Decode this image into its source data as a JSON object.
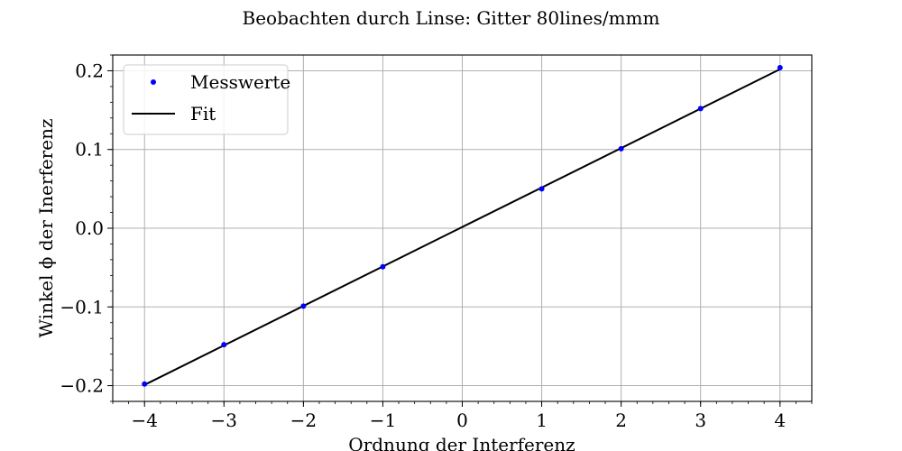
{
  "chart_data": {
    "type": "scatter",
    "title": "Beobachten durch Linse: Gitter 80lines/mmm",
    "xlabel": "Ordnung der Interferenz",
    "ylabel": "Winkel ϕ der Inerferenz",
    "xlim": [
      -4.4,
      4.4
    ],
    "ylim": [
      -0.22,
      0.22
    ],
    "xticks": [
      -4,
      -3,
      -2,
      -1,
      0,
      1,
      2,
      3,
      4
    ],
    "xtick_labels": [
      "−4",
      "−3",
      "−2",
      "−1",
      "0",
      "1",
      "2",
      "3",
      "4"
    ],
    "yticks": [
      -0.2,
      -0.1,
      0.0,
      0.1,
      0.2
    ],
    "ytick_labels": [
      "−0.2",
      "−0.1",
      "0.0",
      "0.1",
      "0.2"
    ],
    "grid": true,
    "legend_position": "top-left",
    "series": [
      {
        "name": "Messwerte",
        "kind": "points",
        "color": "#0000ff",
        "x": [
          -4,
          -3,
          -2,
          -1,
          1,
          2,
          3,
          4
        ],
        "y": [
          -0.198,
          -0.148,
          -0.099,
          -0.049,
          0.05,
          0.101,
          0.152,
          0.204
        ]
      },
      {
        "name": "Fit",
        "kind": "line",
        "color": "#000000",
        "x": [
          -4,
          4
        ],
        "y": [
          -0.199,
          0.202
        ]
      }
    ]
  }
}
